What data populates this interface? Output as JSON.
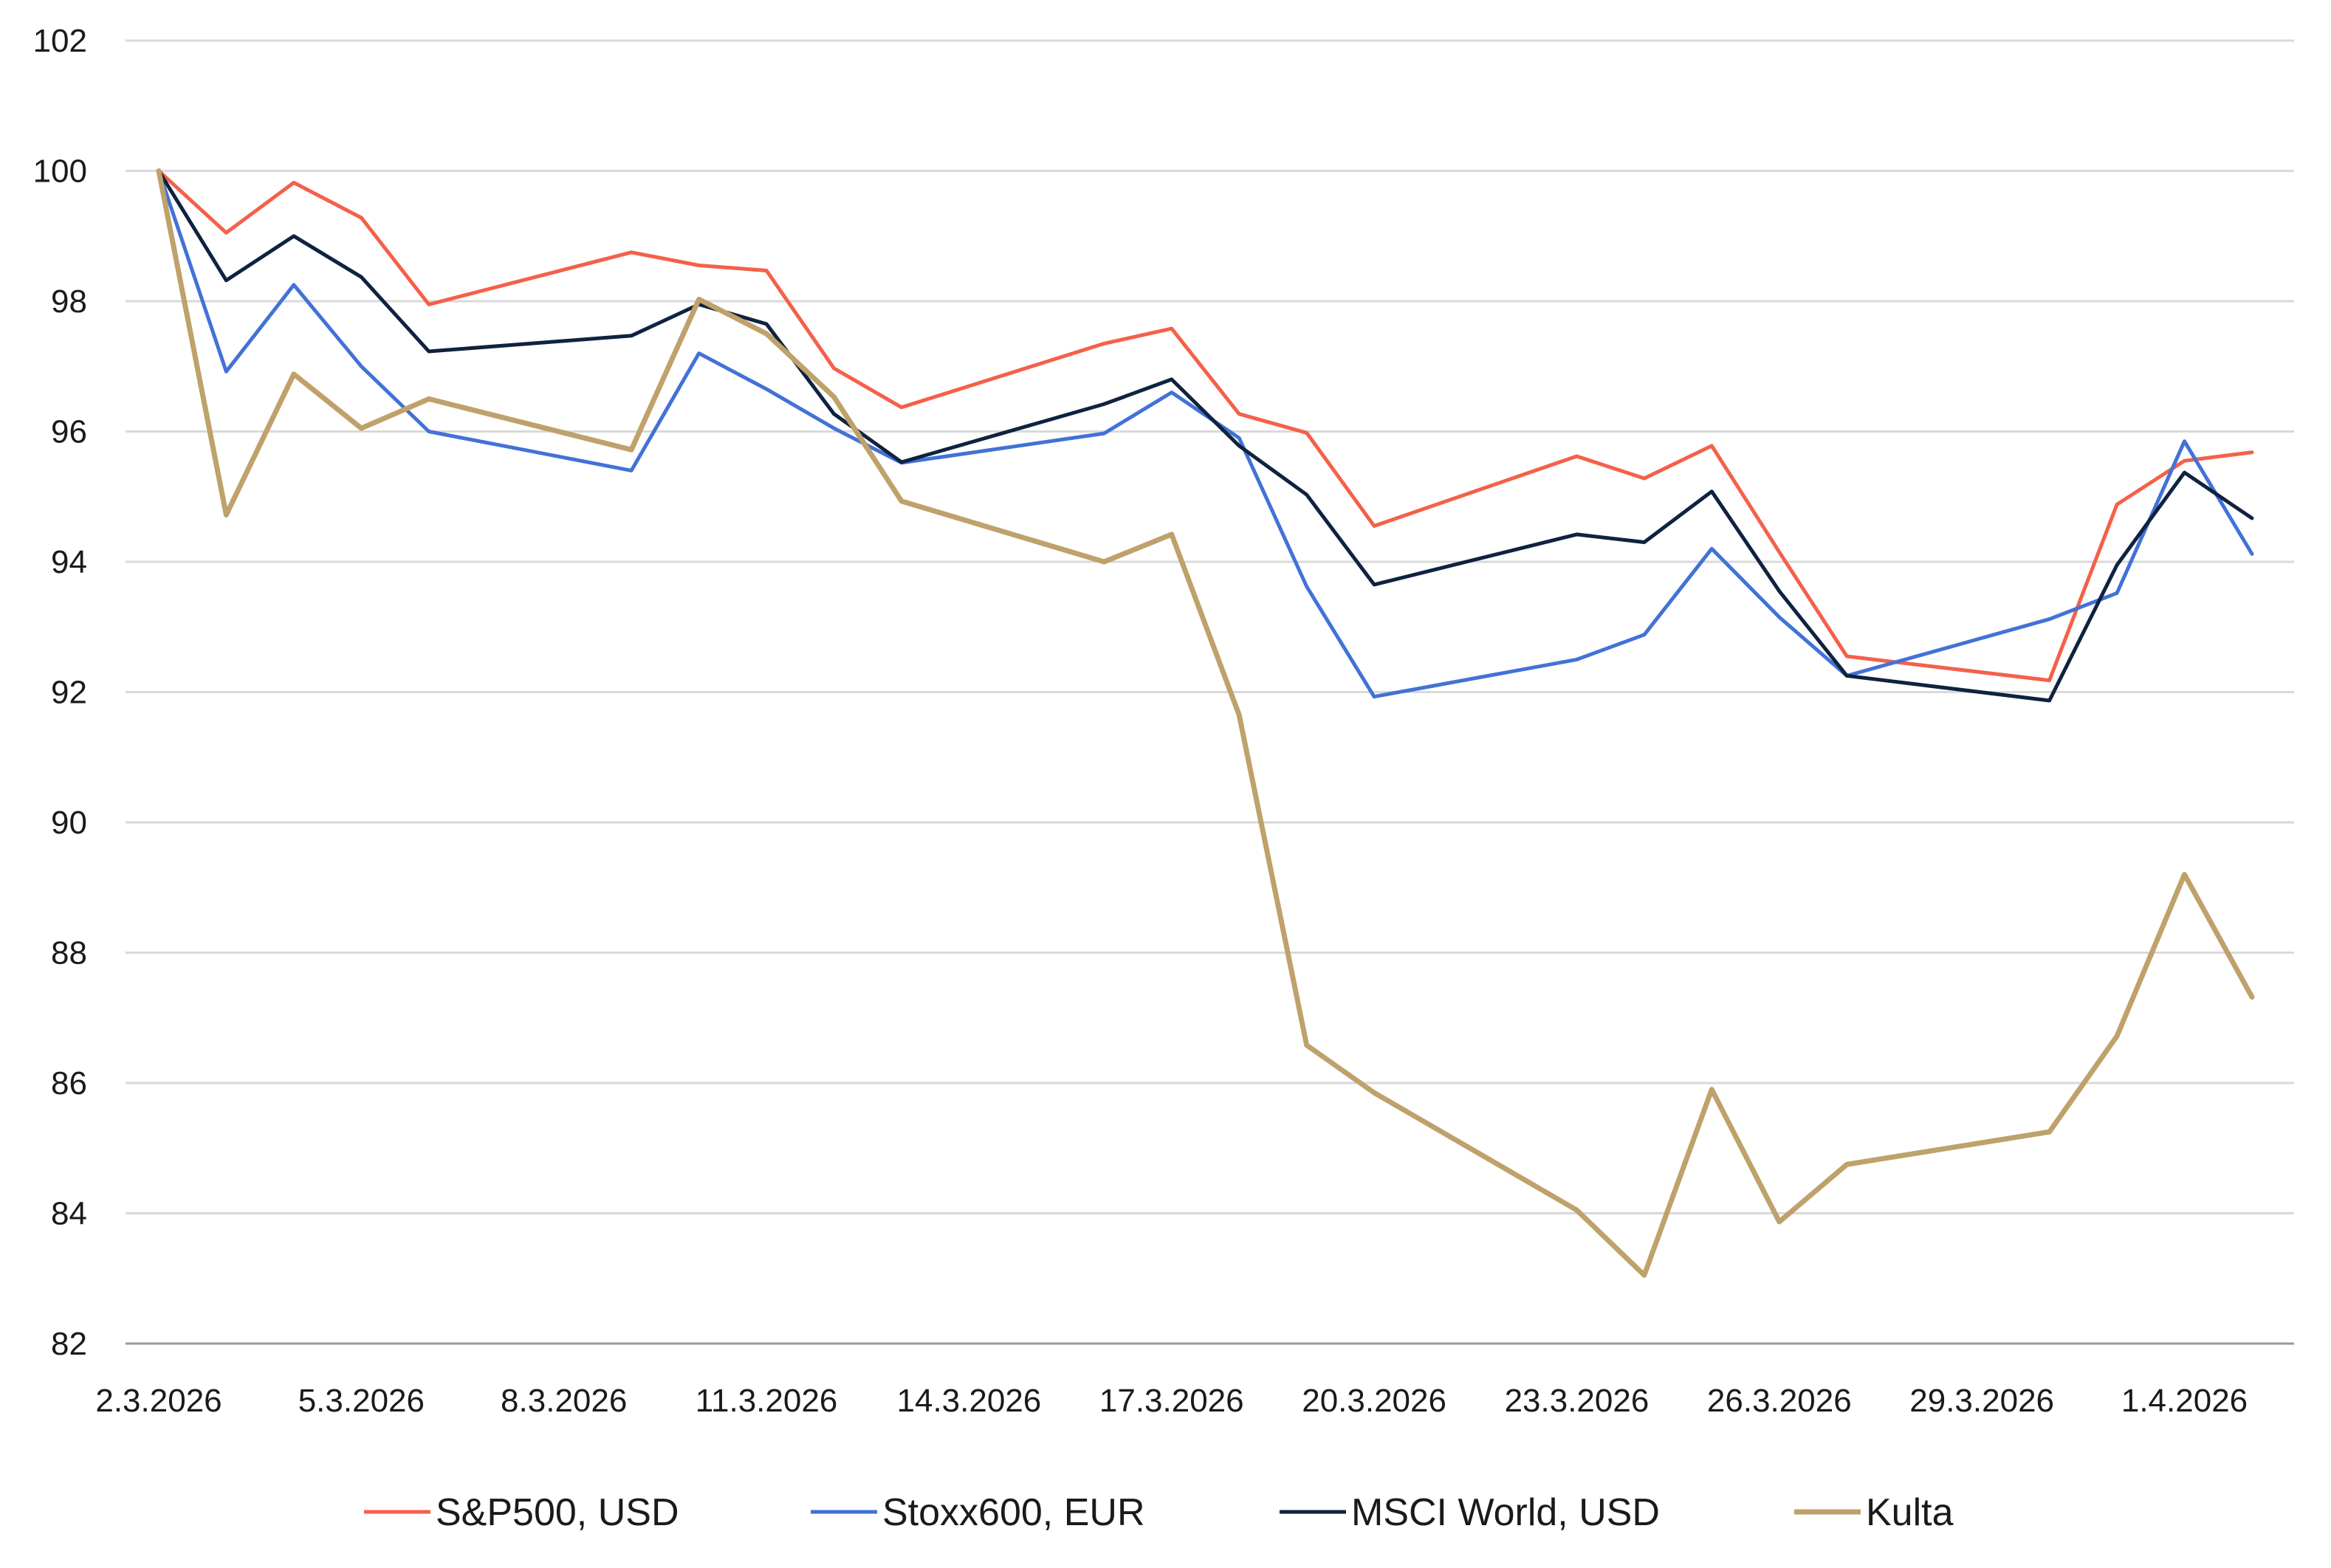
{
  "chart_data": {
    "type": "line",
    "title": "",
    "xlabel": "",
    "ylabel": "",
    "ylim": [
      82,
      102
    ],
    "yticks": [
      82,
      84,
      86,
      88,
      90,
      92,
      94,
      96,
      98,
      100,
      102
    ],
    "ytick_labels": [
      "82",
      "84",
      "86",
      "88",
      "90",
      "92",
      "94",
      "96",
      "98",
      "100",
      "102"
    ],
    "x_points": [
      "2.3.2026",
      "3.3.2026",
      "4.3.2026",
      "5.3.2026",
      "6.3.2026",
      "9.3.2026",
      "10.3.2026",
      "11.3.2026",
      "12.3.2026",
      "13.3.2026",
      "16.3.2026",
      "17.3.2026",
      "18.3.2026",
      "19.3.2026",
      "20.3.2026",
      "23.3.2026",
      "24.3.2026",
      "25.3.2026",
      "26.3.2026",
      "27.3.2026",
      "30.3.2026",
      "31.3.2026",
      "1.4.2026",
      "2.4.2026"
    ],
    "x_day_index": [
      0,
      1,
      2,
      3,
      4,
      7,
      8,
      9,
      10,
      11,
      14,
      15,
      16,
      17,
      18,
      21,
      22,
      23,
      24,
      25,
      28,
      29,
      30,
      31
    ],
    "x_tick_labels": [
      "2.3.2026",
      "5.3.2026",
      "8.3.2026",
      "11.3.2026",
      "14.3.2026",
      "17.3.2026",
      "20.3.2026",
      "23.3.2026",
      "26.3.2026",
      "29.3.2026",
      "1.4.2026"
    ],
    "x_tick_day_index": [
      0,
      3,
      6,
      9,
      12,
      15,
      18,
      21,
      24,
      27,
      30
    ],
    "legend_position": "bottom",
    "grid": true,
    "series": [
      {
        "name": "S&P500, USD",
        "color": "#f4604a",
        "values": [
          100,
          99.05,
          99.82,
          99.28,
          97.95,
          98.75,
          98.55,
          98.47,
          96.97,
          96.37,
          97.35,
          97.58,
          96.27,
          95.98,
          94.55,
          95.62,
          95.28,
          95.78,
          94.15,
          92.55,
          92.18,
          94.88,
          95.55,
          95.68
        ]
      },
      {
        "name": "Stoxx600, EUR",
        "color": "#4272d7",
        "values": [
          100,
          96.92,
          98.25,
          97.0,
          96.0,
          95.4,
          97.2,
          96.65,
          96.05,
          95.52,
          95.97,
          96.6,
          95.9,
          93.62,
          91.93,
          92.5,
          92.88,
          94.2,
          93.15,
          92.25,
          93.12,
          93.52,
          95.85,
          94.12
        ]
      },
      {
        "name": "MSCI World, USD",
        "color": "#0f2240",
        "values": [
          100,
          98.32,
          99.0,
          98.37,
          97.23,
          97.47,
          97.95,
          97.65,
          96.27,
          95.53,
          96.42,
          96.8,
          95.78,
          95.03,
          93.65,
          94.42,
          94.3,
          95.08,
          93.55,
          92.25,
          91.87,
          93.95,
          95.37,
          94.67
        ]
      },
      {
        "name": "Kulta",
        "color": "#bfa16b",
        "values": [
          100,
          94.72,
          96.88,
          96.05,
          96.5,
          95.72,
          98.03,
          97.5,
          96.53,
          94.93,
          94.0,
          94.42,
          91.65,
          86.58,
          85.85,
          84.05,
          83.05,
          85.9,
          83.87,
          84.75,
          85.25,
          86.72,
          89.2,
          87.32
        ]
      }
    ]
  }
}
